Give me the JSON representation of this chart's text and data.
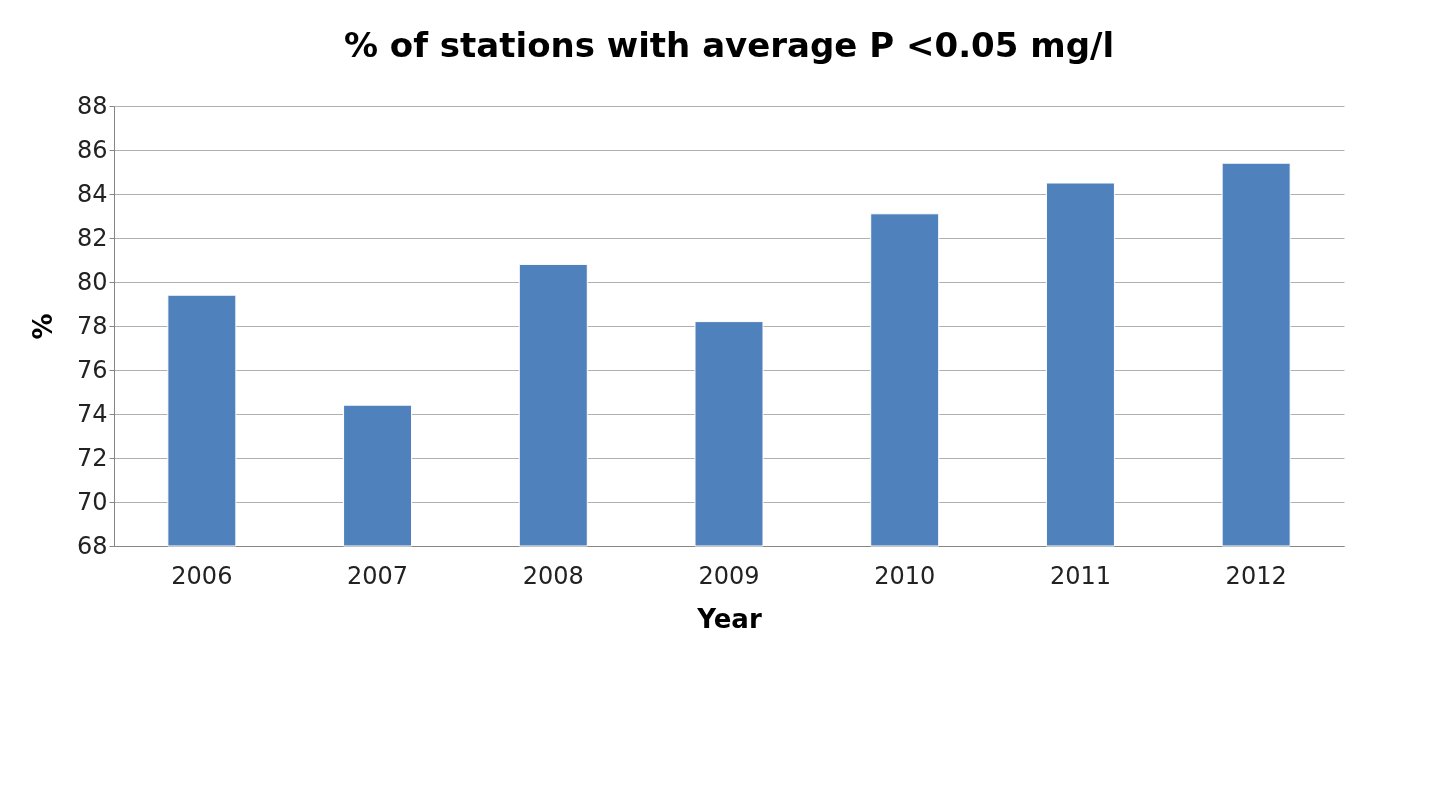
{
  "chart_data": {
    "type": "bar",
    "title": "% of stations with average P <0.05 mg/l",
    "xlabel": "Year",
    "ylabel": "%",
    "categories": [
      "2006",
      "2007",
      "2008",
      "2009",
      "2010",
      "2011",
      "2012"
    ],
    "values": [
      79.4,
      74.4,
      80.8,
      78.2,
      83.1,
      84.5,
      85.4
    ],
    "color": "#4f81bd",
    "ylim": [
      68,
      88
    ],
    "yticks": [
      68,
      70,
      72,
      74,
      76,
      78,
      80,
      82,
      84,
      86,
      88
    ],
    "grid": "y"
  }
}
